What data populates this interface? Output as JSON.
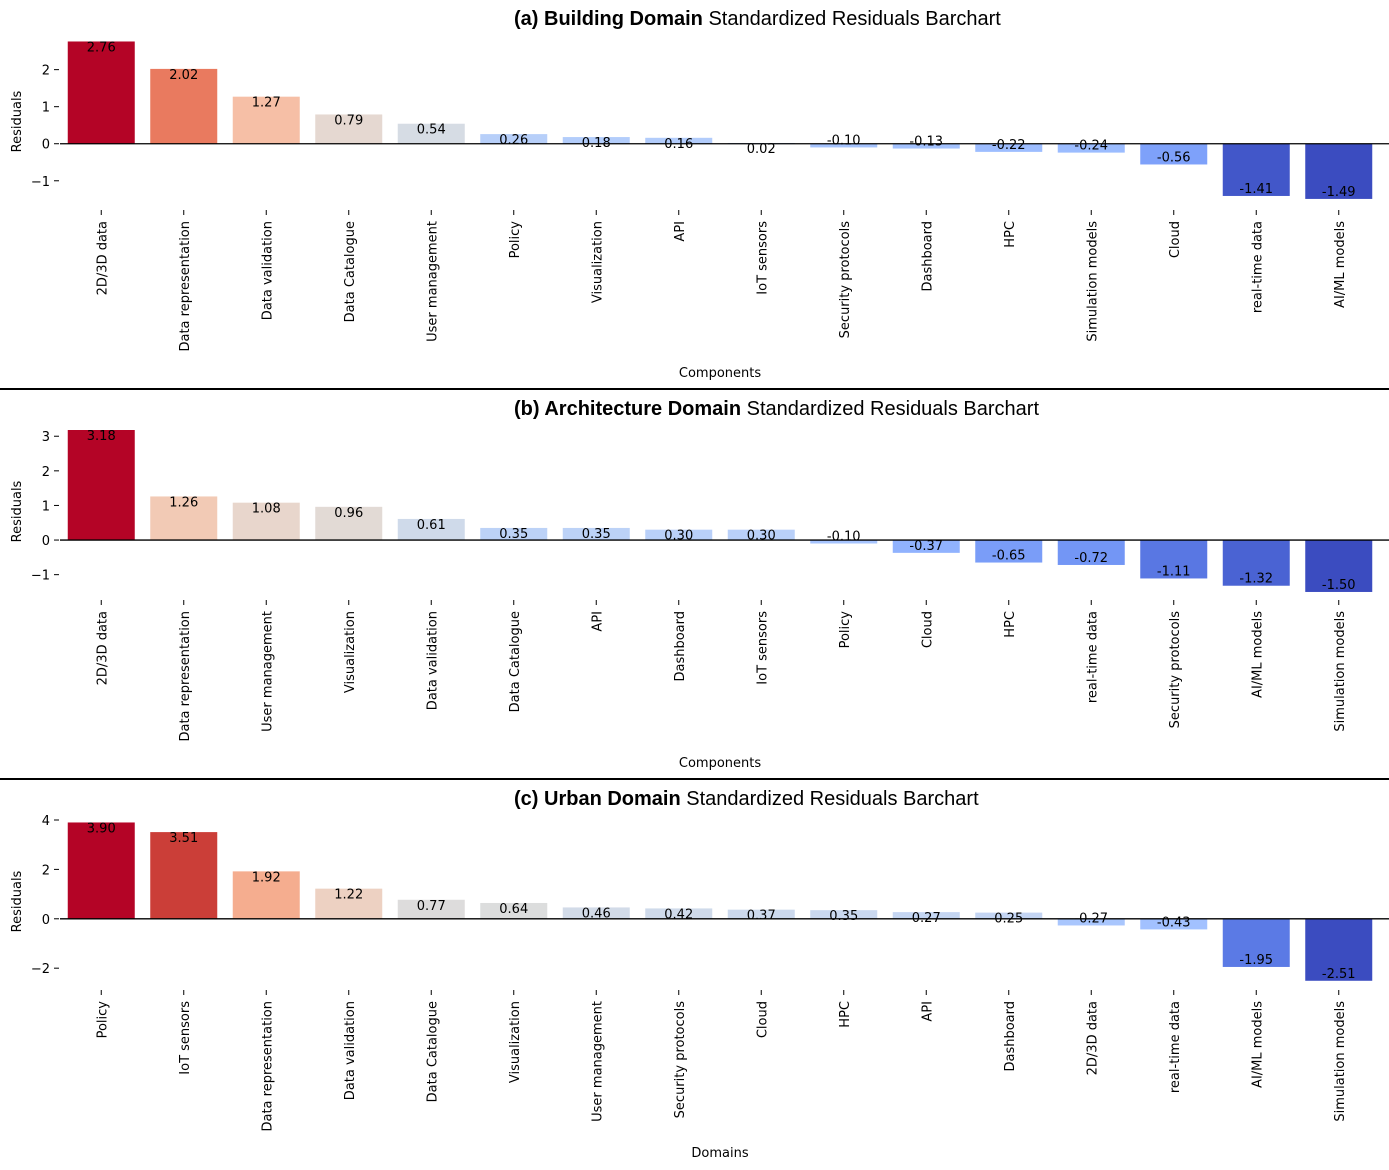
{
  "chart_data": [
    {
      "type": "bar",
      "title_prefix": "(a)",
      "title_bold": "Building Domain",
      "title_rest": "Standardized Residuals Barchart",
      "xlabel": "Components",
      "ylabel": "Residuals",
      "ylim": [
        -1.6,
        2.8
      ],
      "yticks": [
        -1,
        0,
        1,
        2
      ],
      "ytick_labels": [
        "−1",
        "0",
        "1",
        "2"
      ],
      "categories": [
        "2D/3D data",
        "Data representation",
        "Data validation",
        "Data Catalogue",
        "User management",
        "Policy",
        "Visualization",
        "API",
        "IoT sensors",
        "Security protocols",
        "Dashboard",
        "HPC",
        "Simulation models",
        "Cloud",
        "real-time data",
        "AI/ML models"
      ],
      "values": [
        2.76,
        2.02,
        1.27,
        0.79,
        0.54,
        0.26,
        0.18,
        0.16,
        0.02,
        -0.1,
        -0.13,
        -0.22,
        -0.24,
        -0.56,
        -1.41,
        -1.49
      ],
      "labels": [
        "2.76",
        "2.02",
        "1.27",
        "0.79",
        "0.54",
        "0.26",
        "0.18",
        "0.16",
        "0.02",
        "-0.10",
        "-0.13",
        "-0.22",
        "-0.24",
        "-0.56",
        "-1.41",
        "-1.49"
      ],
      "colors": [
        "#b40426",
        "#e97a5f",
        "#f6bfa6",
        "#e5d8d1",
        "#d6dce4",
        "#b7cff9",
        "#b3cdfb",
        "#b2ccfb",
        "#adc9fd",
        "#a6c4fe",
        "#a3c2fe",
        "#9dbdff",
        "#9bbcff",
        "#7ea1fa",
        "#4257c9",
        "#3b4cc0"
      ]
    },
    {
      "type": "bar",
      "title_prefix": "(b)",
      "title_bold": "Architecture Domain",
      "title_rest": "Standardized Residuals Barchart",
      "xlabel": "Components",
      "ylabel": "Residuals",
      "ylim": [
        -1.53,
        3.18
      ],
      "yticks": [
        -1,
        0,
        1,
        2,
        3
      ],
      "ytick_labels": [
        "−1",
        "0",
        "1",
        "2",
        "3"
      ],
      "categories": [
        "2D/3D data",
        "Data representation",
        "User management",
        "Visualization",
        "Data validation",
        "Data Catalogue",
        "API",
        "Dashboard",
        "IoT sensors",
        "Policy",
        "Cloud",
        "HPC",
        "real-time data",
        "Security protocols",
        "AI/ML models",
        "Simulation models"
      ],
      "values": [
        3.18,
        1.26,
        1.08,
        0.96,
        0.61,
        0.35,
        0.35,
        0.3,
        0.3,
        -0.1,
        -0.37,
        -0.65,
        -0.72,
        -1.11,
        -1.32,
        -1.5
      ],
      "labels": [
        "3.18",
        "1.26",
        "1.08",
        "0.96",
        "0.61",
        "0.35",
        "0.35",
        "0.30",
        "0.30",
        "-0.10",
        "-0.37",
        "-0.65",
        "-0.72",
        "-1.11",
        "-1.32",
        "-1.50"
      ],
      "colors": [
        "#b40426",
        "#f2cab5",
        "#e8d6cc",
        "#e2dad5",
        "#cfdaea",
        "#bcd2f7",
        "#bcd2f7",
        "#b9d0f9",
        "#b9d0f9",
        "#a6c4fe",
        "#90b2fe",
        "#7a9df8",
        "#7396f5",
        "#5977e3",
        "#4a63d3",
        "#3b4cc0"
      ]
    },
    {
      "type": "bar",
      "title_prefix": "(c)",
      "title_bold": "Urban Domain",
      "title_rest": "Standardized Residuals Barchart",
      "xlabel": "Domains",
      "ylabel": "Residuals",
      "ylim": [
        -2.6,
        4.0
      ],
      "yticks": [
        -2,
        0,
        2,
        4
      ],
      "ytick_labels": [
        "−2",
        "0",
        "2",
        "4"
      ],
      "categories": [
        "Policy",
        "IoT sensors",
        "Data representation",
        "Data validation",
        "Data Catalogue",
        "Visualization",
        "User management",
        "Security protocols",
        "Cloud",
        "HPC",
        "API",
        "Dashboard",
        "2D/3D data",
        "real-time data",
        "AI/ML models",
        "Simulation models"
      ],
      "values": [
        3.9,
        3.51,
        1.92,
        1.22,
        0.77,
        0.64,
        0.46,
        0.42,
        0.37,
        0.35,
        0.27,
        0.25,
        -0.27,
        -0.43,
        -1.95,
        -2.51
      ],
      "labels": [
        "3.90",
        "3.51",
        "1.92",
        "1.22",
        "0.77",
        "0.64",
        "0.46",
        "0.42",
        "0.37",
        "0.35",
        "0.27",
        "0.25",
        "-0.27",
        "-0.43",
        "-1.95",
        "-2.51"
      ],
      "colors": [
        "#b40426",
        "#cb3e38",
        "#f5ad8f",
        "#edd1c2",
        "#dddcdc",
        "#dcdddd",
        "#d2dbe8",
        "#cfdaea",
        "#ccd9ed",
        "#cad8ef",
        "#c5d6f2",
        "#c4d5f3",
        "#a9c6fd",
        "#a2c1ff",
        "#5b7ae5",
        "#3b4cc0"
      ]
    }
  ]
}
